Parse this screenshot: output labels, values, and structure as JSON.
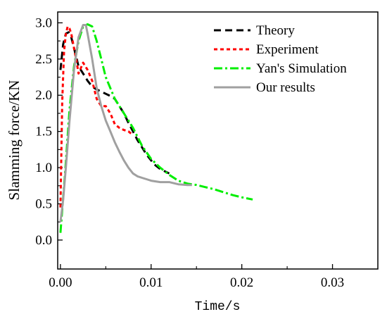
{
  "chart_data": {
    "type": "line",
    "title": "",
    "xlabel": "Time/s",
    "ylabel": "Slamming force/KN",
    "xlim": [
      -0.0003,
      0.035
    ],
    "ylim": [
      -0.4,
      3.15
    ],
    "xticks": [
      0.0,
      0.01,
      0.02,
      0.03
    ],
    "xtick_labels": [
      "0.00",
      "0.01",
      "0.02",
      "0.03"
    ],
    "yticks": [
      0.0,
      0.5,
      1.0,
      1.5,
      2.0,
      2.5,
      3.0
    ],
    "ytick_labels": [
      "0.0",
      "0.5",
      "1.0",
      "1.5",
      "2.0",
      "2.5",
      "3.0"
    ],
    "grid": false,
    "legend_position": "top-right",
    "series": [
      {
        "name": "Theory",
        "color": "#000000",
        "style": "dash",
        "x": [
          0.0,
          0.0003,
          0.0006,
          0.0009,
          0.0012,
          0.0016,
          0.002,
          0.0025,
          0.003,
          0.0035,
          0.004,
          0.0045,
          0.005,
          0.0055,
          0.006,
          0.0065,
          0.007,
          0.0075,
          0.008,
          0.0085,
          0.009,
          0.0095,
          0.01,
          0.0105,
          0.011,
          0.0115,
          0.012
        ],
        "y": [
          2.35,
          2.7,
          2.85,
          2.87,
          2.8,
          2.6,
          2.4,
          2.3,
          2.2,
          2.12,
          2.08,
          2.05,
          2.02,
          1.99,
          1.95,
          1.85,
          1.75,
          1.62,
          1.5,
          1.38,
          1.28,
          1.18,
          1.1,
          1.03,
          0.98,
          0.95,
          0.92
        ]
      },
      {
        "name": "Experiment",
        "color": "#ff0000",
        "style": "short-dash",
        "x": [
          0.0,
          0.0002,
          0.0004,
          0.0006,
          0.0008,
          0.001,
          0.0012,
          0.0015,
          0.0018,
          0.002,
          0.0025,
          0.003,
          0.0035,
          0.004,
          0.0045,
          0.005,
          0.0055,
          0.006,
          0.0065,
          0.007,
          0.0075,
          0.008
        ],
        "y": [
          0.45,
          1.9,
          2.6,
          2.85,
          2.95,
          2.92,
          2.85,
          2.65,
          2.45,
          2.3,
          2.45,
          2.35,
          2.2,
          1.95,
          1.85,
          1.85,
          1.75,
          1.6,
          1.55,
          1.52,
          1.5,
          1.45
        ]
      },
      {
        "name": "Yan's Simulation",
        "color": "#00ee00",
        "style": "dash-dot",
        "x": [
          0.0,
          0.0005,
          0.001,
          0.0015,
          0.002,
          0.0025,
          0.003,
          0.0035,
          0.004,
          0.0045,
          0.005,
          0.006,
          0.007,
          0.008,
          0.009,
          0.01,
          0.011,
          0.012,
          0.013,
          0.014,
          0.015,
          0.016,
          0.017,
          0.018,
          0.019,
          0.02,
          0.0212
        ],
        "y": [
          0.1,
          0.9,
          1.8,
          2.4,
          2.75,
          2.95,
          2.98,
          2.95,
          2.75,
          2.5,
          2.25,
          1.95,
          1.75,
          1.55,
          1.3,
          1.12,
          1.0,
          0.9,
          0.82,
          0.78,
          0.76,
          0.73,
          0.7,
          0.66,
          0.62,
          0.59,
          0.56
        ]
      },
      {
        "name": "Our results",
        "color": "#a0a0a0",
        "style": "solid",
        "x": [
          0.0,
          0.0003,
          0.0006,
          0.001,
          0.0015,
          0.002,
          0.0025,
          0.0028,
          0.003,
          0.0035,
          0.004,
          0.0045,
          0.005,
          0.0055,
          0.006,
          0.0065,
          0.007,
          0.0075,
          0.008,
          0.0085,
          0.009,
          0.0095,
          0.01,
          0.011,
          0.012,
          0.013,
          0.014,
          0.0145
        ],
        "y": [
          0.25,
          0.55,
          1.0,
          1.65,
          2.35,
          2.8,
          2.97,
          2.97,
          2.85,
          2.5,
          2.1,
          1.85,
          1.65,
          1.5,
          1.35,
          1.22,
          1.1,
          1.0,
          0.92,
          0.88,
          0.86,
          0.84,
          0.82,
          0.8,
          0.8,
          0.77,
          0.76,
          0.76
        ]
      }
    ]
  }
}
